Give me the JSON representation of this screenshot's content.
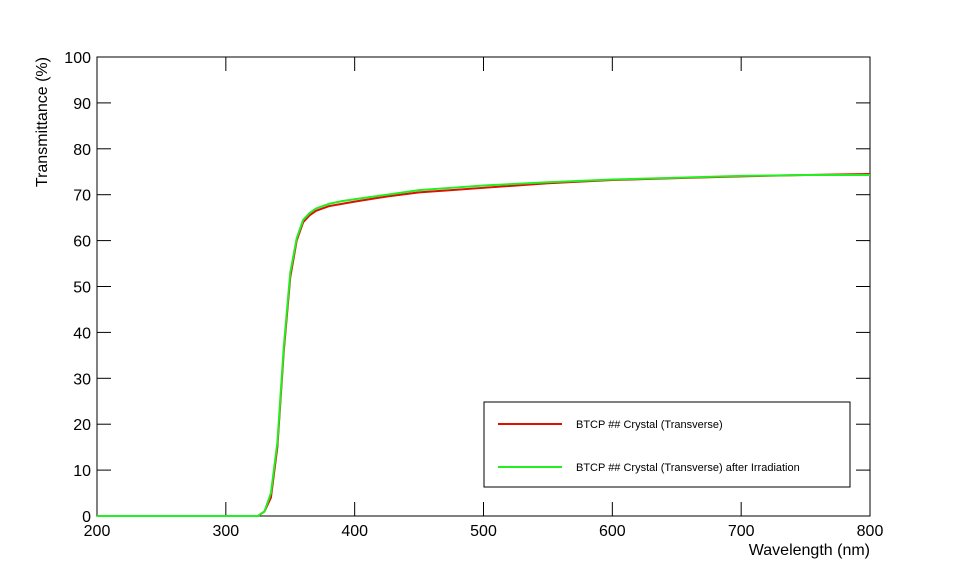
{
  "chart_data": {
    "type": "line",
    "x_label": "Wavelength (nm)",
    "y_label": "Transmittance (%)",
    "x": [
      200,
      250,
      300,
      325,
      330,
      335,
      340,
      345,
      350,
      355,
      360,
      365,
      370,
      380,
      390,
      400,
      425,
      450,
      475,
      500,
      550,
      600,
      650,
      700,
      750,
      800
    ],
    "series": [
      {
        "name": "BTCP ## Crystal (Transverse)",
        "color": "#dd1100",
        "values": [
          0,
          0,
          0,
          0,
          1,
          4,
          15,
          36,
          52,
          60,
          64,
          65.5,
          66.5,
          67.5,
          68,
          68.5,
          69.6,
          70.5,
          71,
          71.5,
          72.5,
          73.2,
          73.6,
          74,
          74.3,
          74.5
        ]
      },
      {
        "name": "BTCP ## Crystal (Transverse) after Irradiation",
        "color": "#22ee22",
        "values": [
          0,
          0,
          0,
          0,
          1,
          5,
          16,
          37,
          53,
          60.5,
          64.5,
          66,
          67,
          68,
          68.6,
          69,
          70,
          71,
          71.5,
          72,
          72.7,
          73.3,
          73.7,
          74.1,
          74.3,
          74.3
        ]
      }
    ],
    "xlim": [
      200,
      800
    ],
    "xticks": [
      200,
      300,
      400,
      500,
      600,
      700,
      800
    ],
    "ylim": [
      0,
      100
    ],
    "yticks": [
      0,
      10,
      20,
      30,
      40,
      50,
      60,
      70,
      80,
      90,
      100
    ]
  }
}
